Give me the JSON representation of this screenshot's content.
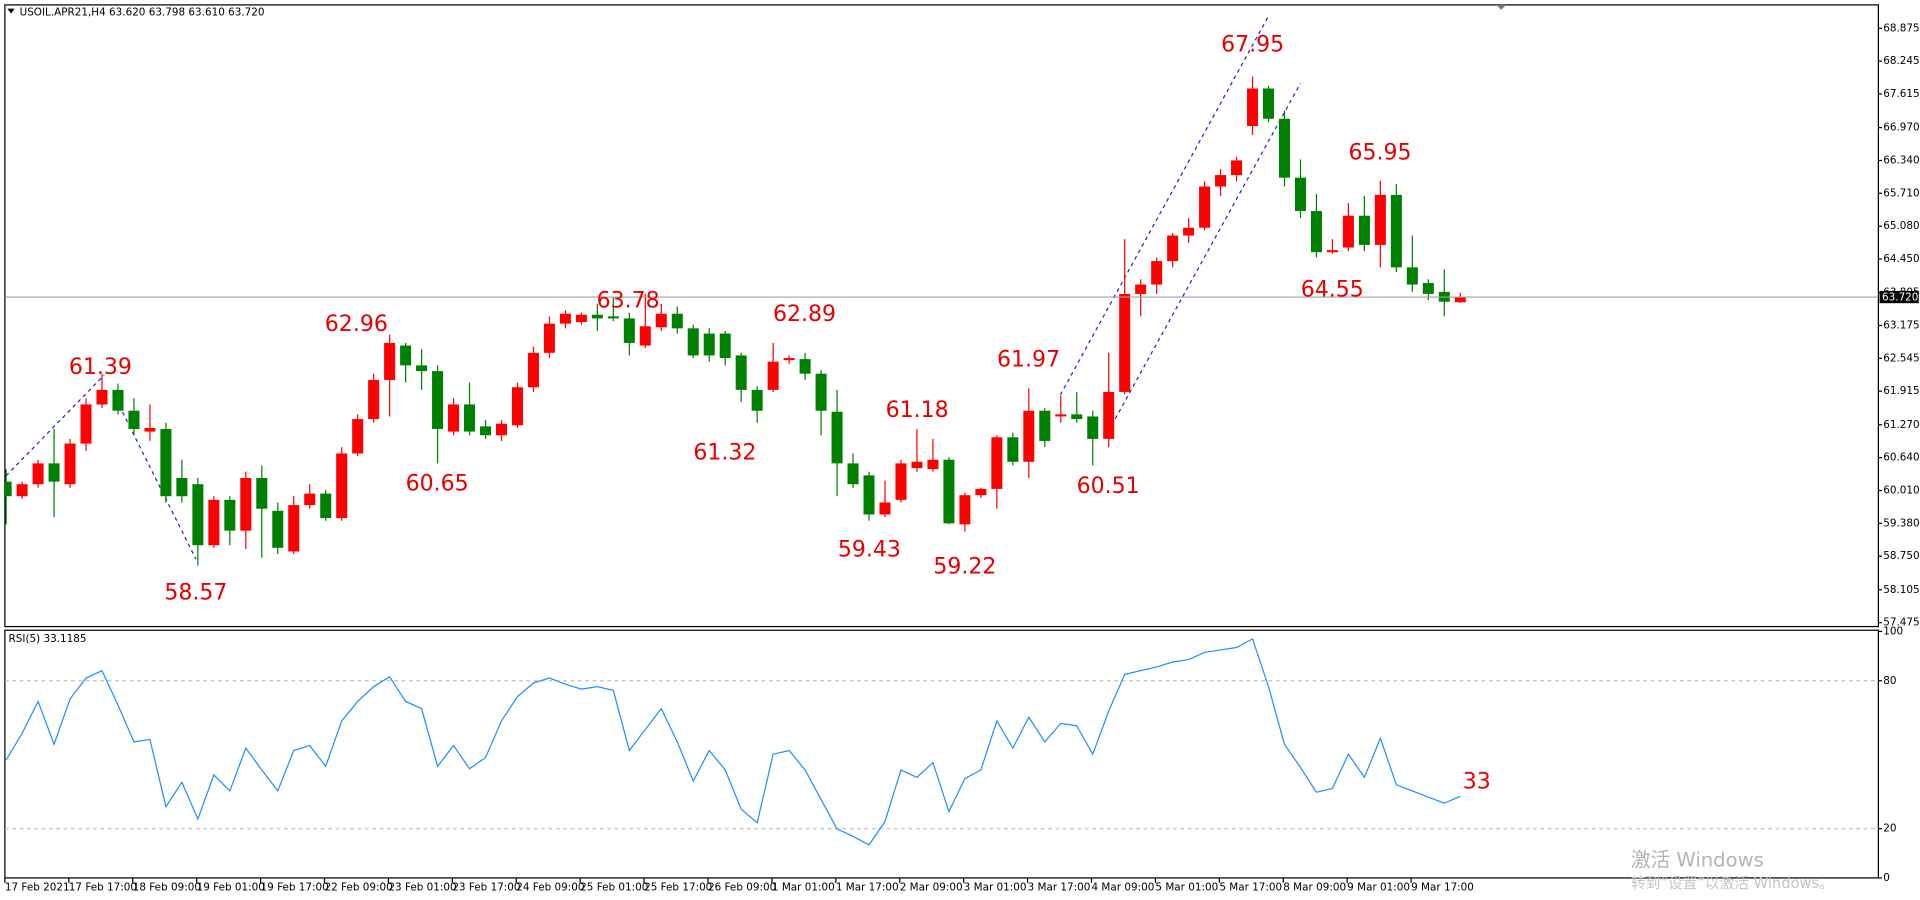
{
  "chart_data": [
    {
      "type": "candlestick",
      "title": "USOIL.APR21,H4 63.620 63.798 63.610 63.720",
      "categories": [
        "17 Feb 2021",
        null,
        null,
        null,
        "17 Feb 17:00",
        null,
        null,
        null,
        "18 Feb 09:00",
        null,
        null,
        null,
        "19 Feb 01:00",
        null,
        null,
        null,
        "19 Feb 17:00",
        null,
        null,
        null,
        "22 Feb 09:00",
        null,
        null,
        null,
        "23 Feb 01:00",
        null,
        null,
        null,
        "23 Feb 17:00",
        null,
        null,
        null,
        "24 Feb 09:00",
        null,
        null,
        null,
        "25 Feb 01:00",
        null,
        null,
        null,
        "25 Feb 17:00",
        null,
        null,
        null,
        "26 Feb 09:00",
        null,
        null,
        null,
        "1 Mar 01:00",
        null,
        null,
        null,
        "1 Mar 17:00",
        null,
        null,
        null,
        "2 Mar 09:00",
        null,
        null,
        null,
        "3 Mar 01:00",
        null,
        null,
        null,
        "3 Mar 17:00",
        null,
        null,
        null,
        "4 Mar 09:00",
        null,
        null,
        null,
        "5 Mar 01:00",
        null,
        null,
        null,
        "5 Mar 17:00",
        null,
        null,
        null,
        "8 Mar 09:00",
        null,
        null,
        null,
        "9 Mar 01:00",
        null,
        null,
        null,
        "9 Mar 17:00",
        null,
        null,
        null
      ],
      "open": [
        60.18,
        59.9,
        60.13,
        60.53,
        60.13,
        60.91,
        61.66,
        61.94,
        61.54,
        61.14,
        61.19,
        60.25,
        60.13,
        58.96,
        59.83,
        59.24,
        60.25,
        59.62,
        58.84,
        59.73,
        59.95,
        59.48,
        60.72,
        61.38,
        62.13,
        62.79,
        62.41,
        62.3,
        61.14,
        61.66,
        61.24,
        61.07,
        61.26,
        61.99,
        62.65,
        63.21,
        63.24,
        63.38,
        63.35,
        63.31,
        62.79,
        63.14,
        63.4,
        63.12,
        63.02,
        63.02,
        62.6,
        61.94,
        61.94,
        62.51,
        62.53,
        62.25,
        61.52,
        60.53,
        60.3,
        59.55,
        59.83,
        60.44,
        60.42,
        60.6,
        59.36,
        59.92,
        60.04,
        61.03,
        60.56,
        61.54,
        61.43,
        61.47,
        61.43,
        61.0,
        61.9,
        63.78,
        63.96,
        64.41,
        64.9,
        65.05,
        65.84,
        66.06,
        67.0,
        67.72,
        67.14,
        66.01,
        65.37,
        64.58,
        64.67,
        65.28,
        64.72,
        65.68,
        64.29,
        63.99,
        63.82,
        63.62
      ],
      "high": [
        60.42,
        60.18,
        60.6,
        61.19,
        61.0,
        61.78,
        62.25,
        62.06,
        61.78,
        61.66,
        61.31,
        60.6,
        60.25,
        59.9,
        59.9,
        60.37,
        60.49,
        59.78,
        59.9,
        60.13,
        60.02,
        60.84,
        61.47,
        62.25,
        63.0,
        62.84,
        62.72,
        62.41,
        61.78,
        62.08,
        61.36,
        61.36,
        62.08,
        62.77,
        63.35,
        63.47,
        63.42,
        63.59,
        63.73,
        63.42,
        63.78,
        63.59,
        63.54,
        63.19,
        63.12,
        63.07,
        62.65,
        62.01,
        62.84,
        62.6,
        62.65,
        62.32,
        61.94,
        60.72,
        60.37,
        60.2,
        60.6,
        61.19,
        61.0,
        60.65,
        59.97,
        60.06,
        61.07,
        61.12,
        61.97,
        61.59,
        61.83,
        61.9,
        61.54,
        62.65,
        64.83,
        64.06,
        64.48,
        64.95,
        65.23,
        65.94,
        66.17,
        66.41,
        67.95,
        67.77,
        67.3,
        66.36,
        65.7,
        64.83,
        65.52,
        65.66,
        65.95,
        65.89,
        64.9,
        64.06,
        64.25,
        63.798
      ],
      "low": [
        59.36,
        59.85,
        60.06,
        59.5,
        60.06,
        60.77,
        61.59,
        61.47,
        61.07,
        60.96,
        59.78,
        59.78,
        58.57,
        58.91,
        58.96,
        58.89,
        58.72,
        58.79,
        58.79,
        59.66,
        59.43,
        59.43,
        60.67,
        61.31,
        61.43,
        62.08,
        61.94,
        60.53,
        61.07,
        61.07,
        61.0,
        60.96,
        61.21,
        61.9,
        62.55,
        63.12,
        63.19,
        63.07,
        63.26,
        62.6,
        62.74,
        63.07,
        63.02,
        62.55,
        62.48,
        62.41,
        61.71,
        61.31,
        61.9,
        62.44,
        62.13,
        61.07,
        59.9,
        60.06,
        59.43,
        59.5,
        59.78,
        60.37,
        60.37,
        59.36,
        59.22,
        59.87,
        59.66,
        60.49,
        60.25,
        60.84,
        61.31,
        61.31,
        60.49,
        60.84,
        61.85,
        63.35,
        63.78,
        64.29,
        64.76,
        65.0,
        65.66,
        65.94,
        66.83,
        67.07,
        65.84,
        65.23,
        64.48,
        64.55,
        64.6,
        64.6,
        64.29,
        64.2,
        63.82,
        63.66,
        63.35,
        63.61
      ],
      "close": [
        59.9,
        60.13,
        60.53,
        60.18,
        60.91,
        61.66,
        61.94,
        61.54,
        61.19,
        61.21,
        59.9,
        59.9,
        58.96,
        59.83,
        59.24,
        60.25,
        59.66,
        58.91,
        59.73,
        59.95,
        59.48,
        60.72,
        61.38,
        62.13,
        62.84,
        62.41,
        62.3,
        61.19,
        61.66,
        61.14,
        61.07,
        61.29,
        61.99,
        62.65,
        63.21,
        63.4,
        63.38,
        63.31,
        63.31,
        62.84,
        63.16,
        63.4,
        63.12,
        62.6,
        62.6,
        62.55,
        61.94,
        61.54,
        62.48,
        62.55,
        62.25,
        61.54,
        60.53,
        60.13,
        59.55,
        59.78,
        60.53,
        60.56,
        60.6,
        59.38,
        59.92,
        60.04,
        61.03,
        60.56,
        61.54,
        60.96,
        61.47,
        61.38,
        61.0,
        61.9,
        63.78,
        63.96,
        64.41,
        64.9,
        65.05,
        65.84,
        66.06,
        66.34,
        67.72,
        67.14,
        66.01,
        65.37,
        64.58,
        64.62,
        65.28,
        64.72,
        65.68,
        64.29,
        63.96,
        63.78,
        63.63,
        63.72
      ],
      "up_color": "#ff0000",
      "down_color": "#008000",
      "current_price": {
        "value": 63.72,
        "label": "63.720"
      },
      "annotations": [
        61.39,
        58.57,
        62.96,
        60.65,
        63.78,
        61.32,
        62.89,
        59.43,
        61.18,
        59.22,
        61.97,
        60.51,
        67.95,
        64.55,
        65.95
      ],
      "annotation_color": "#e60000",
      "ylim": [
        57.4,
        69.3
      ],
      "yticks": [
        57.475,
        58.105,
        {
          "value": 58.75,
          "label": "58.750"
        },
        {
          "value": 59.38,
          "label": "59.380"
        },
        {
          "value": 60.01,
          "label": "60.010"
        },
        {
          "value": 60.64,
          "label": "60.640"
        },
        {
          "value": 61.27,
          "label": "61.270"
        },
        61.915,
        62.545,
        63.175,
        63.805,
        {
          "value": 64.45,
          "label": "64.450"
        },
        {
          "value": 65.08,
          "label": "65.080"
        },
        {
          "value": 65.71,
          "label": "65.710"
        },
        {
          "value": 66.34,
          "label": "66.340"
        },
        {
          "value": 66.97,
          "label": "66.970"
        },
        67.615,
        68.245,
        68.875
      ]
    },
    {
      "type": "line",
      "title": "RSI(5) 33.1185",
      "values": [
        47.8,
        58.7,
        71.6,
        54.2,
        72.6,
        81.1,
        84.1,
        70.1,
        55.2,
        56.2,
        28.9,
        38.8,
        23.9,
        41.8,
        35.3,
        52.7,
        43.8,
        35.3,
        51.7,
        53.7,
        45.3,
        63.7,
        71.6,
        77.6,
        81.6,
        71.6,
        68.7,
        45.3,
        53.7,
        44.3,
        48.8,
        63.7,
        73.6,
        79.1,
        81.1,
        78.6,
        76.6,
        77.6,
        76.1,
        51.7,
        60.2,
        68.7,
        55.2,
        39.3,
        51.7,
        43.8,
        27.9,
        22.4,
        50.2,
        51.7,
        43.8,
        31.8,
        19.9,
        16.9,
        13.4,
        22.9,
        43.8,
        40.8,
        46.8,
        26.9,
        40.3,
        43.8,
        63.7,
        52.7,
        65.2,
        55.2,
        62.7,
        61.7,
        50.2,
        67.7,
        82.6,
        84.1,
        85.6,
        87.6,
        88.6,
        91.5,
        92.5,
        93.5,
        97.0,
        77.6,
        54.2,
        44.8,
        34.8,
        36.3,
        50.2,
        40.8,
        56.7,
        37.8,
        35.3,
        32.8,
        30.3,
        33.1185
      ],
      "color": "#1e90ff",
      "annotations": [
        33
      ],
      "ylim": [
        0,
        100
      ],
      "yticks": [
        0,
        20,
        80,
        100
      ]
    }
  ],
  "watermark": {
    "title": "激活 Windows",
    "subtitle": "转到“设置”以激活 Windows。"
  }
}
